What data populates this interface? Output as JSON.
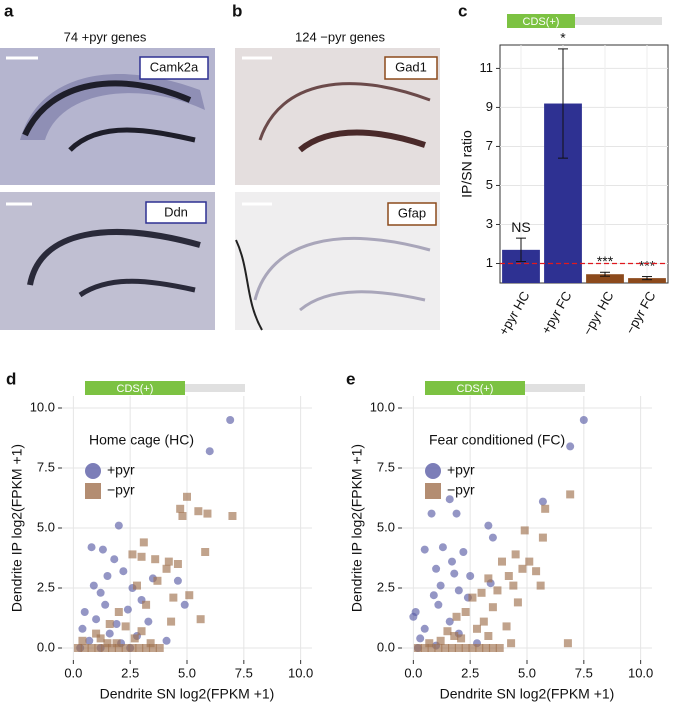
{
  "panels": [
    {
      "label": "a",
      "caption": "74 +pyr genes",
      "genes": [
        "Camk2a",
        "Ddn"
      ]
    },
    {
      "label": "b",
      "caption": "124 −pyr genes",
      "genes": [
        "Gad1",
        "Gfap"
      ]
    }
  ],
  "chart_data": [
    {
      "type": "bar",
      "panel": "c",
      "header": "CDS(+)",
      "ylabel": "IP/SN ratio",
      "categories": [
        "+pyr HC",
        "+pyr FC",
        "−pyr HC",
        "−pyr FC"
      ],
      "values": [
        1.7,
        9.2,
        0.45,
        0.25
      ],
      "errors": [
        0.6,
        2.8,
        0.1,
        0.08
      ],
      "colors": [
        "#2e3192",
        "#2e3192",
        "#8c4a1c",
        "#8c4a1c"
      ],
      "annotations": [
        "NS",
        "*",
        "***",
        "***"
      ],
      "hline": 1,
      "hline_color": "#e0191f",
      "ylim": [
        0,
        12.2
      ],
      "yticks": [
        1,
        3,
        5,
        7,
        9,
        11
      ],
      "grid": true
    },
    {
      "type": "scatter",
      "panel": "d",
      "header": "CDS(+)",
      "legend_title": "Home cage (HC)",
      "xlabel": "Dendrite SN log2(FPKM +1)",
      "ylabel": "Dendrite IP log2(FPKM +1)",
      "xlim": [
        -0.5,
        10.5
      ],
      "ylim": [
        -0.5,
        10.5
      ],
      "xticks": [
        {
          "value": 0,
          "label": "0.0"
        },
        2.5,
        {
          "value": 5,
          "label": "5.0"
        },
        7.5,
        {
          "value": 10,
          "label": "10.0"
        }
      ],
      "yticks": [
        {
          "value": 0,
          "label": "0.0"
        },
        2.5,
        {
          "value": 5,
          "label": "5.0"
        },
        7.5,
        {
          "value": 10,
          "label": "10.0"
        }
      ],
      "grid": true,
      "series": [
        {
          "name": "+pyr",
          "color": "#5b5ea6",
          "marker": "circle",
          "x": [
            6.9,
            6.0,
            2.0,
            0.8,
            1.3,
            1.8,
            2.2,
            1.5,
            3.5,
            0.9,
            1.2,
            2.6,
            3.0,
            1.4,
            0.5,
            2.4,
            1.0,
            1.9,
            3.3,
            0.4,
            4.6,
            4.9,
            2.8,
            1.6,
            0.7,
            2.1,
            1.2,
            0.3,
            2.5,
            4.1
          ],
          "values": [
            9.5,
            8.2,
            5.1,
            4.2,
            4.1,
            3.7,
            3.2,
            3.0,
            2.9,
            2.6,
            2.3,
            2.5,
            2.0,
            1.8,
            1.5,
            1.6,
            1.2,
            1.0,
            1.1,
            0.8,
            2.8,
            1.8,
            0.5,
            0.6,
            0.3,
            0.2,
            0,
            0,
            0,
            0.3
          ]
        },
        {
          "name": "−pyr",
          "color": "#a0714f",
          "marker": "square",
          "x": [
            7.0,
            5.0,
            4.7,
            5.5,
            4.8,
            5.9,
            3.1,
            3.0,
            3.6,
            2.6,
            4.2,
            5.8,
            4.6,
            4.1,
            2.8,
            3.7,
            5.1,
            3.2,
            4.4,
            2.0,
            5.6,
            4.3,
            1.6,
            2.3,
            3.0,
            0.2,
            0.5,
            0.8,
            1.1,
            1.4,
            1.7,
            2.0,
            2.3,
            2.6,
            2.9,
            3.2,
            3.5,
            3.8,
            0.4,
            1.2,
            1.9,
            2.7,
            3.4,
            1.0,
            1.5
          ],
          "values": [
            5.5,
            6.3,
            5.8,
            5.7,
            5.5,
            5.6,
            4.4,
            3.8,
            3.7,
            3.9,
            3.6,
            4.0,
            3.5,
            3.3,
            2.6,
            2.8,
            2.2,
            1.8,
            2.1,
            1.5,
            1.2,
            1.1,
            1.0,
            0.9,
            0.7,
            0,
            0,
            0,
            0,
            0,
            0,
            0,
            0,
            0,
            0,
            0,
            0,
            0,
            0.3,
            0.4,
            0.2,
            0.4,
            0.2,
            0.6,
            0.2
          ]
        }
      ]
    },
    {
      "type": "scatter",
      "panel": "e",
      "header": "CDS(+)",
      "legend_title": "Fear conditioned (FC)",
      "xlabel": "Dendrite SN log2(FPKM +1)",
      "ylabel": "Dendrite IP log2(FPKM +1)",
      "xlim": [
        -0.5,
        10.5
      ],
      "ylim": [
        -0.5,
        10.5
      ],
      "xticks": [
        {
          "value": 0,
          "label": "0.0"
        },
        2.5,
        {
          "value": 5,
          "label": "5.0"
        },
        7.5,
        {
          "value": 10,
          "label": "10.0"
        }
      ],
      "yticks": [
        {
          "value": 0,
          "label": "0.0"
        },
        2.5,
        {
          "value": 5,
          "label": "5.0"
        },
        7.5,
        {
          "value": 10,
          "label": "10.0"
        }
      ],
      "grid": true,
      "series": [
        {
          "name": "+pyr",
          "color": "#5b5ea6",
          "marker": "circle",
          "x": [
            7.5,
            6.9,
            1.6,
            5.7,
            1.9,
            0.8,
            3.3,
            3.5,
            0.5,
            1.3,
            2.2,
            1.7,
            1.0,
            1.8,
            2.5,
            3.4,
            1.2,
            2.0,
            0.9,
            2.4,
            1.1,
            0.1,
            0.0,
            1.6,
            0.5,
            2.0,
            0.3,
            1.0,
            0.2,
            2.8
          ],
          "values": [
            9.5,
            8.4,
            6.2,
            6.1,
            5.6,
            5.6,
            5.1,
            4.6,
            4.1,
            4.2,
            4.0,
            3.6,
            3.3,
            3.1,
            3.0,
            2.7,
            2.6,
            2.4,
            2.2,
            2.1,
            1.8,
            1.5,
            1.3,
            1.1,
            0.8,
            0.6,
            0.4,
            0.1,
            0,
            0.2
          ]
        },
        {
          "name": "−pyr",
          "color": "#a0714f",
          "marker": "square",
          "x": [
            6.9,
            5.8,
            4.9,
            5.7,
            4.5,
            5.1,
            4.8,
            3.9,
            5.4,
            4.2,
            3.3,
            5.6,
            4.4,
            3.7,
            3.0,
            2.6,
            4.6,
            3.5,
            2.3,
            1.9,
            3.1,
            2.8,
            1.5,
            4.1,
            6.8,
            0.2,
            0.5,
            0.8,
            1.1,
            1.4,
            1.7,
            2.0,
            2.3,
            2.6,
            2.9,
            3.2,
            3.5,
            3.8,
            1.2,
            2.1,
            3.3,
            0.7,
            4.3,
            1.8
          ],
          "values": [
            6.4,
            5.8,
            4.9,
            4.6,
            3.9,
            3.6,
            3.3,
            3.6,
            3.2,
            3.0,
            2.9,
            2.6,
            2.6,
            2.4,
            2.3,
            2.1,
            1.9,
            1.7,
            1.5,
            1.3,
            1.1,
            0.8,
            0.7,
            0.9,
            0.2,
            0,
            0,
            0,
            0,
            0,
            0,
            0,
            0,
            0,
            0,
            0,
            0,
            0,
            0.3,
            0.4,
            0.5,
            0.2,
            0.2,
            0.5
          ]
        }
      ]
    }
  ]
}
